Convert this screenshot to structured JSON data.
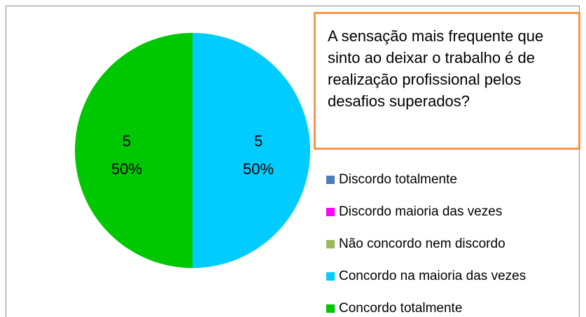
{
  "chart_data": {
    "type": "pie",
    "title": "A sensação mais frequente que sinto ao deixar o trabalho é de realização profissional pelos desafios superados?",
    "categories": [
      "Discordo totalmente",
      "Discordo maioria das vezes",
      "Não concordo nem discordo",
      "Concordo na maioria das vezes",
      "Concordo totalmente"
    ],
    "values": [
      0,
      0,
      0,
      5,
      5
    ],
    "percentages": [
      0,
      0,
      0,
      50,
      50
    ],
    "percentage_labels": [
      null,
      null,
      null,
      "50%",
      "50%"
    ],
    "colors": [
      "#4a7ebb",
      "#ff00ff",
      "#9bbb59",
      "#00ccff",
      "#00c800"
    ],
    "legend": "right"
  }
}
